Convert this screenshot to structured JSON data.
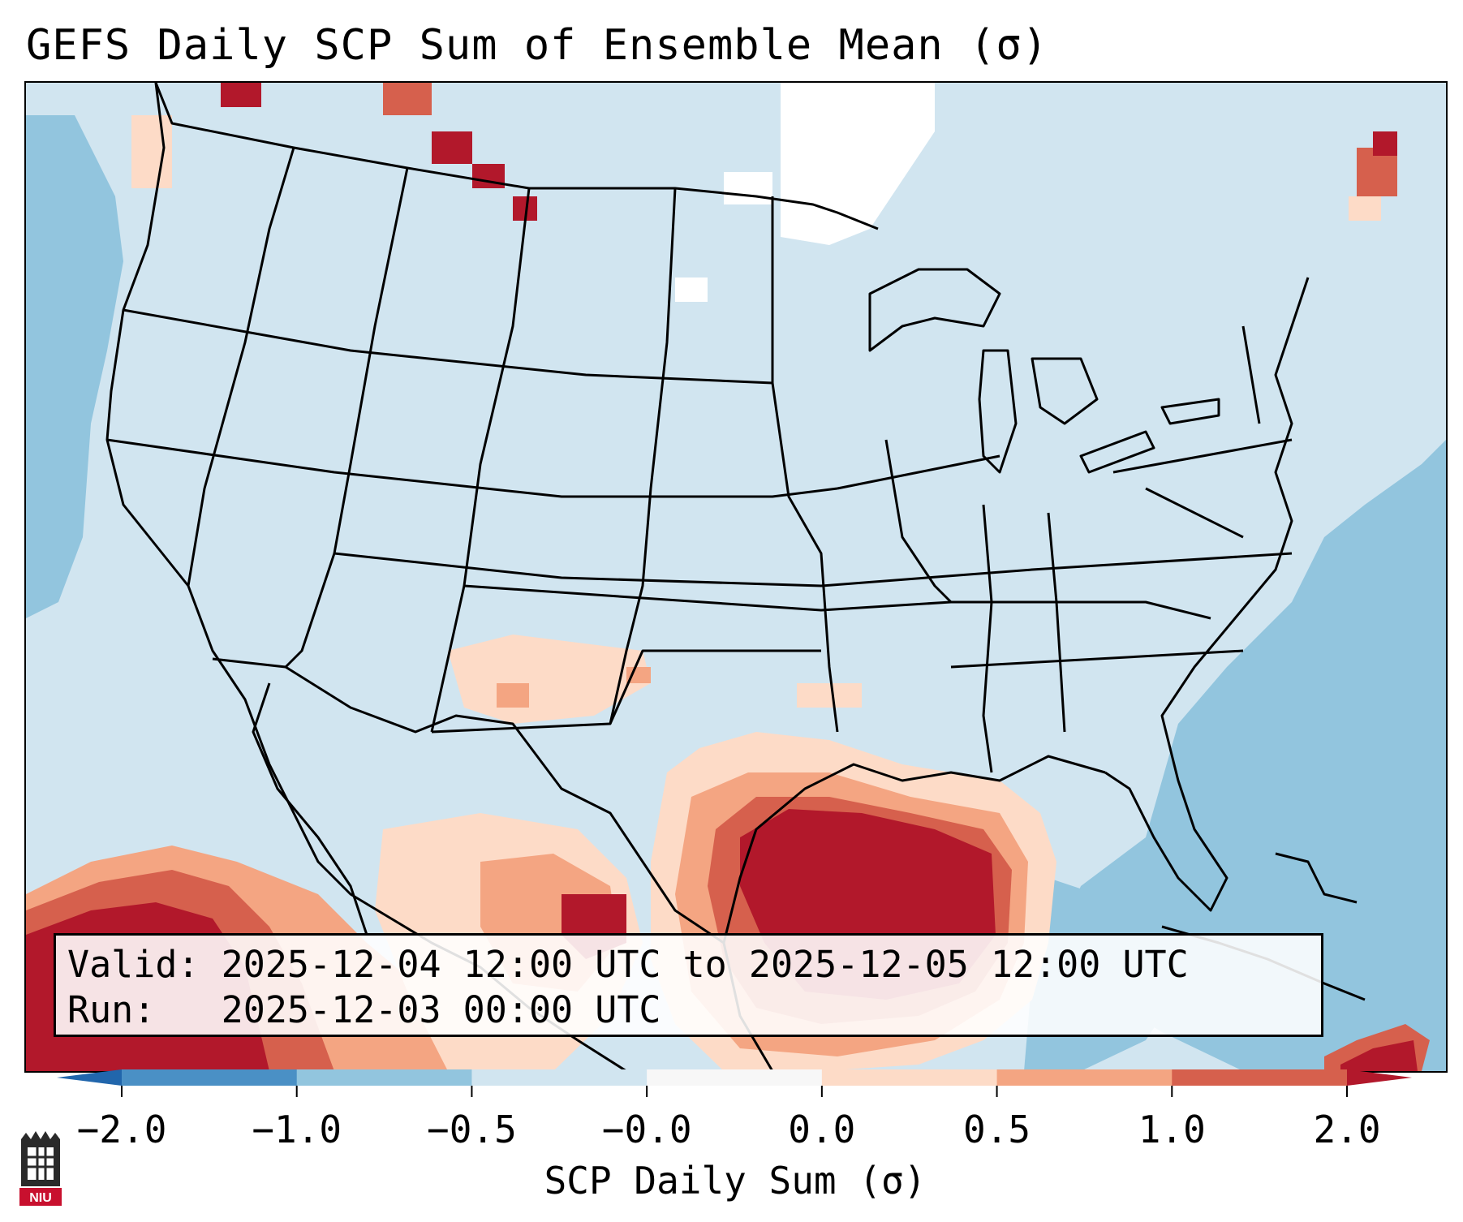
{
  "title": "GEFS Daily SCP Sum of Ensemble Mean (σ)",
  "info": {
    "valid_label": "Valid:",
    "valid_value": "2025-12-04 12:00 UTC to 2025-12-05 12:00 UTC",
    "run_label": "Run:",
    "run_value": "2025-12-03 00:00 UTC"
  },
  "colorbar": {
    "label": "SCP Daily Sum (σ)",
    "ticks": [
      "−2.0",
      "−1.0",
      "−0.5",
      "−0.0",
      "0.0",
      "0.5",
      "1.0",
      "2.0"
    ],
    "bin_colors": [
      "#4a90c5",
      "#92c5de",
      "#d1e5f0",
      "#f7f7f7",
      "#fddbc7",
      "#f4a582",
      "#d6604d"
    ],
    "under_color": "#2166ac",
    "over_color": "#b2182b"
  },
  "map_colors": {
    "ocean_neutral": "#d1e5f0",
    "ocean_low": "#92c5de",
    "high_max": "#b2182b",
    "high_mid": "#d6604d",
    "high_low": "#f4a582",
    "high_min": "#fddbc7",
    "no_signal": "#ffffff",
    "boundary": "#000000"
  },
  "logo": {
    "text": "NIU",
    "name": "Northern Illinois University"
  }
}
